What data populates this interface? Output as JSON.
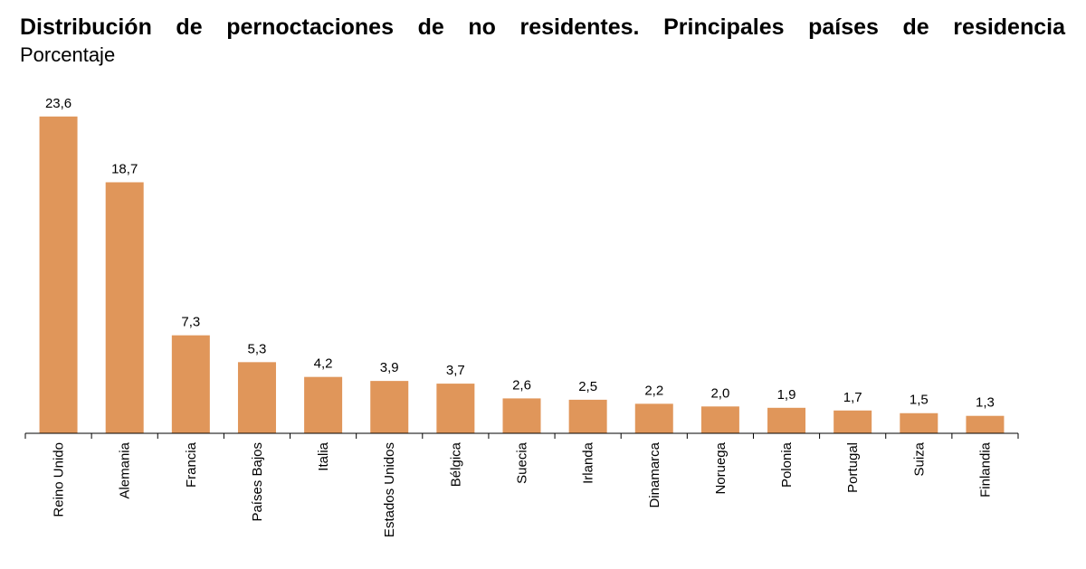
{
  "title": "Distribución de pernoctaciones de no residentes. Principales países de residencia",
  "subtitle": "Porcentaje",
  "bar_color": "#E0965A",
  "chart_data": {
    "type": "bar",
    "title": "Distribución de pernoctaciones de no residentes. Principales países de residencia",
    "subtitle": "Porcentaje",
    "xlabel": "",
    "ylabel": "",
    "ylim": [
      0,
      25
    ],
    "grid": false,
    "legend": "none",
    "categories": [
      "Reino Unido",
      "Alemania",
      "Francia",
      "Países Bajos",
      "Italia",
      "Estados Unidos",
      "Bélgica",
      "Suecia",
      "Irlanda",
      "Dinamarca",
      "Noruega",
      "Polonia",
      "Portugal",
      "Suiza",
      "Finlandia"
    ],
    "values": [
      23.6,
      18.7,
      7.3,
      5.3,
      4.2,
      3.9,
      3.7,
      2.6,
      2.5,
      2.2,
      2.0,
      1.9,
      1.7,
      1.5,
      1.3
    ],
    "value_labels": [
      "23,6",
      "18,7",
      "7,3",
      "5,3",
      "4,2",
      "3,9",
      "3,7",
      "2,6",
      "2,5",
      "2,2",
      "2,0",
      "1,9",
      "1,7",
      "1,5",
      "1,3"
    ]
  }
}
